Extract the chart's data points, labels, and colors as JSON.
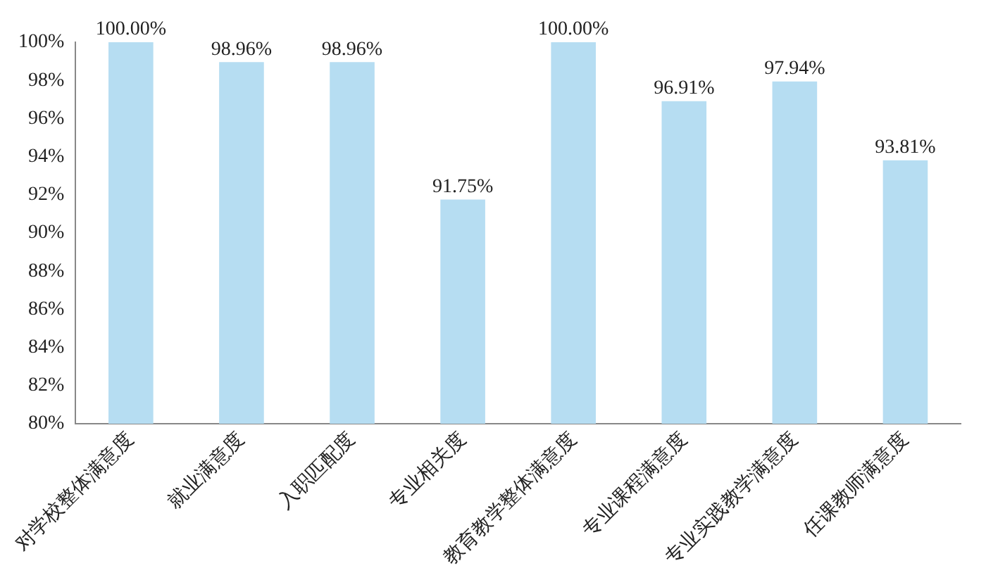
{
  "chart_data": {
    "type": "bar",
    "categories": [
      "对学校整体满意度",
      "就业满意度",
      "入职匹配度",
      "专业相关度",
      "教育教学整体满意度",
      "专业课程满意度",
      "专业实践教学满意度",
      "任课教师满意度"
    ],
    "values": [
      100,
      98.96,
      98.96,
      91.75,
      100,
      96.91,
      97.94,
      93.81
    ],
    "value_labels": [
      "100.00%",
      "98.96%",
      "98.96%",
      "91.75%",
      "100.00%",
      "96.91%",
      "97.94%",
      "93.81%"
    ],
    "color": "#b6ddf2",
    "ylim": [
      80,
      100
    ],
    "yticks": [
      {
        "value": 80,
        "label": "80%"
      },
      {
        "value": 82,
        "label": "82%"
      },
      {
        "value": 84,
        "label": "84%"
      },
      {
        "value": 86,
        "label": "86%"
      },
      {
        "value": 88,
        "label": "88%"
      },
      {
        "value": 90,
        "label": "90%"
      },
      {
        "value": 92,
        "label": "92%"
      },
      {
        "value": 94,
        "label": "94%"
      },
      {
        "value": 96,
        "label": "96%"
      },
      {
        "value": 98,
        "label": "98%"
      },
      {
        "value": 100,
        "label": "100%"
      }
    ],
    "grid": false,
    "legend": false
  }
}
